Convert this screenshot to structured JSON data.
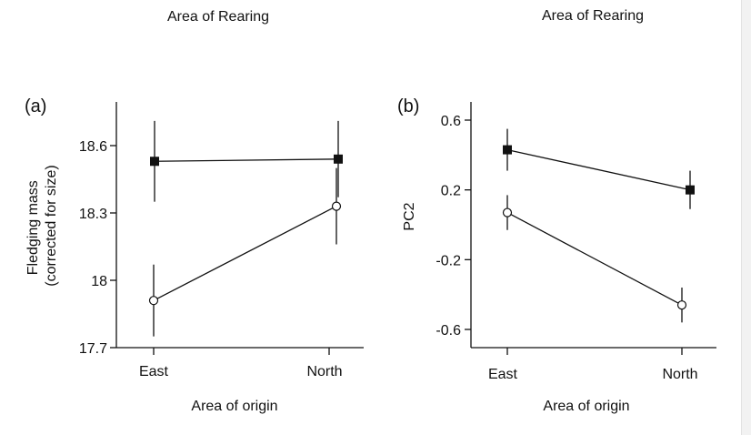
{
  "chart_data": [
    {
      "panel_label": "(a)",
      "top_title": "Area of Rearing",
      "type": "line",
      "categories": [
        "East",
        "North"
      ],
      "xlabel": "Area of origin",
      "ylabel_lines": [
        "Fledging mass",
        "(corrected for size)"
      ],
      "ylim": [
        17.7,
        18.8
      ],
      "y_ticks": [
        17.7,
        18,
        18.3,
        18.6
      ],
      "y_tick_labels": [
        "17.7",
        "18",
        "18.3",
        "18.6"
      ],
      "grid": false,
      "legend": "none",
      "series": [
        {
          "marker": "filled-square",
          "values": [
            18.53,
            18.54
          ],
          "error": [
            0.18,
            0.17
          ]
        },
        {
          "marker": "open-circle",
          "values": [
            17.91,
            18.33
          ],
          "error": [
            0.16,
            0.17
          ]
        }
      ]
    },
    {
      "panel_label": "(b)",
      "top_title": "Area of Rearing",
      "type": "line",
      "categories": [
        "East",
        "North"
      ],
      "xlabel": "Area of origin",
      "ylabel_lines": [
        "PC2"
      ],
      "ylim": [
        -0.72,
        0.72
      ],
      "y_ticks": [
        0.6,
        0.2,
        -0.2,
        -0.6
      ],
      "y_tick_labels": [
        "0.6",
        "0.2",
        "-0.2",
        "-0.6"
      ],
      "grid": false,
      "legend": "none",
      "series": [
        {
          "marker": "filled-square",
          "values": [
            0.43,
            0.2
          ],
          "error": [
            0.12,
            0.11
          ]
        },
        {
          "marker": "open-circle",
          "values": [
            0.07,
            -0.46
          ],
          "error": [
            0.1,
            0.1
          ]
        }
      ]
    }
  ]
}
